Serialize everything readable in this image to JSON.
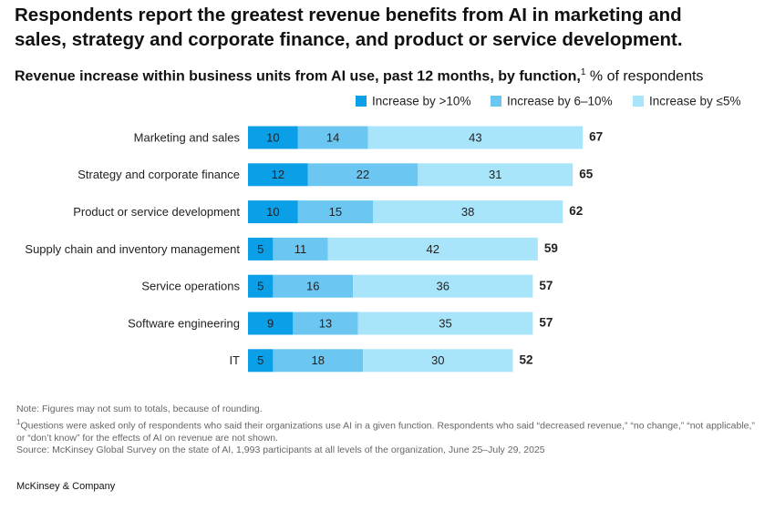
{
  "chart_data": {
    "type": "bar",
    "orientation": "horizontal",
    "stacked": true,
    "title": "Respondents report the greatest revenue benefits from AI in marketing and sales, strategy and corporate finance, and product or service development.",
    "subtitle": "Revenue increase within business units from AI use, past 12 months, by function,",
    "subtitle_note": "1",
    "unit_label": "% of respondents",
    "categories": [
      "Marketing and sales",
      "Strategy and corporate finance",
      "Product or service development",
      "Supply chain and inventory management",
      "Service operations",
      "Software engineering",
      "IT"
    ],
    "series": [
      {
        "name": "Increase by >10%",
        "color": "#0a9fe6",
        "values": [
          10,
          12,
          10,
          5,
          5,
          9,
          5
        ]
      },
      {
        "name": "Increase by 6–10%",
        "color": "#6cc6f2",
        "values": [
          14,
          22,
          15,
          11,
          16,
          13,
          18
        ]
      },
      {
        "name": "Increase by ≤5%",
        "color": "#a8e5fb",
        "values": [
          43,
          31,
          38,
          42,
          36,
          35,
          30
        ]
      }
    ],
    "totals": [
      67,
      65,
      62,
      59,
      57,
      57,
      52
    ],
    "legend": "top-right"
  },
  "footer": {
    "note": "Note: Figures may not sum to totals, because of rounding.",
    "footnote_marker": "1",
    "footnote": "Questions were asked only of respondents who said their organizations use AI in a given function. Respondents who said “decreased revenue,” “no change,” “not applicable,” or “don’t know” for the effects of AI on revenue are not shown.",
    "source": "Source: McKinsey Global Survey on the state of AI, 1,993 participants at all levels of the organization, June 25–July 29, 2025",
    "brand": "McKinsey & Company"
  }
}
